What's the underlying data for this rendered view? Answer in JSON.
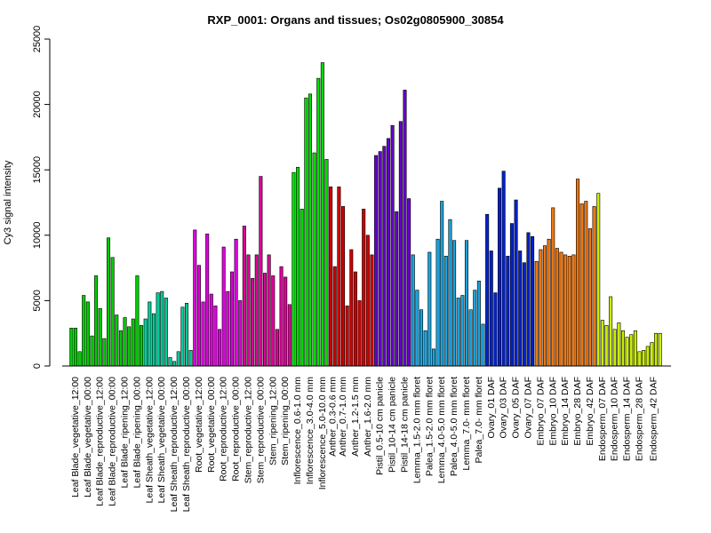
{
  "chart_data": {
    "type": "bar",
    "title": "RXP_0001: Organs and tissues; Os02g0805900_30854",
    "xlabel": "",
    "ylabel": "Cy3 signal intensity",
    "ylim": [
      0,
      25000
    ],
    "yticks": [
      0,
      5000,
      10000,
      15000,
      20000,
      25000
    ],
    "grid": false,
    "groups": [
      {
        "label": "Leaf Blade_vegetative_12:00",
        "color": "#00CC00",
        "values": [
          2900,
          2900,
          1100
        ]
      },
      {
        "label": "Leaf Blade_vegetative_00:00",
        "color": "#00CC00",
        "values": [
          5400,
          4900,
          2300
        ]
      },
      {
        "label": "Leaf Blade_reproductive_12:00",
        "color": "#00CC00",
        "values": [
          6900,
          4400,
          2100
        ]
      },
      {
        "label": "Leaf Blade_reproductive_00:00",
        "color": "#00CC00",
        "values": [
          9800,
          8300,
          3900
        ]
      },
      {
        "label": "Leaf Blade_ripening_12:00",
        "color": "#00CC00",
        "values": [
          2700,
          3700,
          3000
        ]
      },
      {
        "label": "Leaf Blade_ripening_00:00",
        "color": "#00CC00",
        "values": [
          3600,
          6900,
          3100
        ]
      },
      {
        "label": "Leaf Sheath_vegetative_12:00",
        "color": "#00CC99",
        "values": [
          3600,
          4900,
          4000
        ]
      },
      {
        "label": "Leaf Sheath_vegetative_00:00",
        "color": "#00CC99",
        "values": [
          5600,
          5700,
          5200
        ]
      },
      {
        "label": "Leaf Sheath_reproductive_12:00",
        "color": "#00CC99",
        "values": [
          650,
          350,
          1100
        ]
      },
      {
        "label": "Leaf Sheath_reproductive_00:00",
        "color": "#00CC99",
        "values": [
          4500,
          4800,
          1200
        ]
      },
      {
        "label": "Root_vegetative_12:00",
        "color": "#DD00DD",
        "values": [
          10400,
          7700,
          4900
        ]
      },
      {
        "label": "Root_vegetative_00:00",
        "color": "#DD00DD",
        "values": [
          10100,
          5500,
          4600
        ]
      },
      {
        "label": "Root_reproductive_12:00",
        "color": "#DD00DD",
        "values": [
          2800,
          9100,
          5700
        ]
      },
      {
        "label": "Root_reproductive_00:00",
        "color": "#DD00DD",
        "values": [
          7200,
          9700,
          5000
        ]
      },
      {
        "label": "Stem_reproductive_12:00",
        "color": "#DD0099",
        "values": [
          10700,
          8500,
          6700
        ]
      },
      {
        "label": "Stem_reproductive_00:00",
        "color": "#DD0099",
        "values": [
          8500,
          14500,
          7100
        ]
      },
      {
        "label": "Stem_ripening_12:00",
        "color": "#DD0099",
        "values": [
          8500,
          6900,
          2800
        ]
      },
      {
        "label": "Stem_ripening_00:00",
        "color": "#DD0099",
        "values": [
          7600,
          6800,
          4700
        ]
      },
      {
        "label": "Inflorescence_0.6-1.0 mm",
        "color": "#00DD00",
        "values": [
          14800,
          15200,
          12000
        ]
      },
      {
        "label": "Inflorescence_3.0-4.0 mm",
        "color": "#00DD00",
        "values": [
          20500,
          20800,
          16300
        ]
      },
      {
        "label": "Inflorescence_5.0-10.0 mm",
        "color": "#00DD00",
        "values": [
          22000,
          23200,
          15800
        ]
      },
      {
        "label": "Anther_0.3-0.6 mm",
        "color": "#CC0000",
        "values": [
          13700,
          7600
        ]
      },
      {
        "label": "Anther_0.7-1.0 mm",
        "color": "#CC0000",
        "values": [
          13700,
          12200,
          4600
        ]
      },
      {
        "label": "Anther_1.2-1.5 mm",
        "color": "#CC0000",
        "values": [
          8900,
          7200,
          5000
        ]
      },
      {
        "label": "Anther_1.6-2.0 mm",
        "color": "#CC0000",
        "values": [
          12000,
          10000,
          8500
        ]
      },
      {
        "label": "Pistil_0.5-10 cm panicle",
        "color": "#6600CC",
        "values": [
          16100,
          16400,
          16800
        ]
      },
      {
        "label": "Pistil_10-14 cm panicle",
        "color": "#6600CC",
        "values": [
          17400,
          18400,
          11800
        ]
      },
      {
        "label": "Pistil_14-18 cm panicle",
        "color": "#6600CC",
        "values": [
          18700,
          21100,
          12800
        ]
      },
      {
        "label": "Lemma_1.5-2.0 mm floret",
        "color": "#1AA3DD",
        "values": [
          8500,
          5800,
          4300
        ]
      },
      {
        "label": "Palea_1.5-2.0 mm floret",
        "color": "#1AA3DD",
        "values": [
          2700,
          8700,
          1300
        ]
      },
      {
        "label": "Lemma_4.0-5.0 mm floret",
        "color": "#1AA3DD",
        "values": [
          9700,
          12600,
          8400
        ]
      },
      {
        "label": "Palea_4.0-5.0 mm floret",
        "color": "#1AA3DD",
        "values": [
          11200,
          9600,
          5200
        ]
      },
      {
        "label": "Lemma_7.0- mm floret",
        "color": "#1AA3DD",
        "values": [
          5400,
          9600,
          4300
        ]
      },
      {
        "label": "Palea_7.0- mm floret",
        "color": "#1AA3DD",
        "values": [
          5800,
          6500,
          3200
        ]
      },
      {
        "label": "Ovary_01 DAF",
        "color": "#0022CC",
        "values": [
          11600,
          8800,
          5600
        ]
      },
      {
        "label": "Ovary_03 DAF",
        "color": "#0022CC",
        "values": [
          13600,
          14900,
          8400
        ]
      },
      {
        "label": "Ovary_05 DAF",
        "color": "#0022CC",
        "values": [
          10900,
          12700,
          8800
        ]
      },
      {
        "label": "Ovary_07 DAF",
        "color": "#0022CC",
        "values": [
          7900,
          10200,
          9900
        ]
      },
      {
        "label": "Embryo_07 DAF",
        "color": "#EE7711",
        "values": [
          8000,
          8900,
          9200
        ]
      },
      {
        "label": "Embryo_10 DAF",
        "color": "#EE7711",
        "values": [
          9700,
          12100,
          9000
        ]
      },
      {
        "label": "Embryo_14 DAF",
        "color": "#EE7711",
        "values": [
          8700,
          8500,
          8400
        ]
      },
      {
        "label": "Embryo_28 DAF",
        "color": "#EE7711",
        "values": [
          8500,
          14300,
          12400
        ]
      },
      {
        "label": "Embryo_42 DAF",
        "color": "#EE7711",
        "values": [
          12600,
          10500,
          12200
        ]
      },
      {
        "label": "Endosperm_07 DAF",
        "color": "#CCEE00",
        "values": [
          13200,
          3500,
          3100
        ]
      },
      {
        "label": "Endosperm_10 DAF",
        "color": "#CCEE00",
        "values": [
          5300,
          2800,
          3300
        ]
      },
      {
        "label": "Endosperm_14 DAF",
        "color": "#CCEE00",
        "values": [
          2700,
          2200,
          2400
        ]
      },
      {
        "label": "Endosperm_28 DAF",
        "color": "#CCEE00",
        "values": [
          2700,
          1100,
          1200
        ]
      },
      {
        "label": "Endosperm_42 DAF",
        "color": "#CCEE00",
        "values": [
          1500,
          1800,
          2500,
          2500
        ]
      }
    ]
  }
}
